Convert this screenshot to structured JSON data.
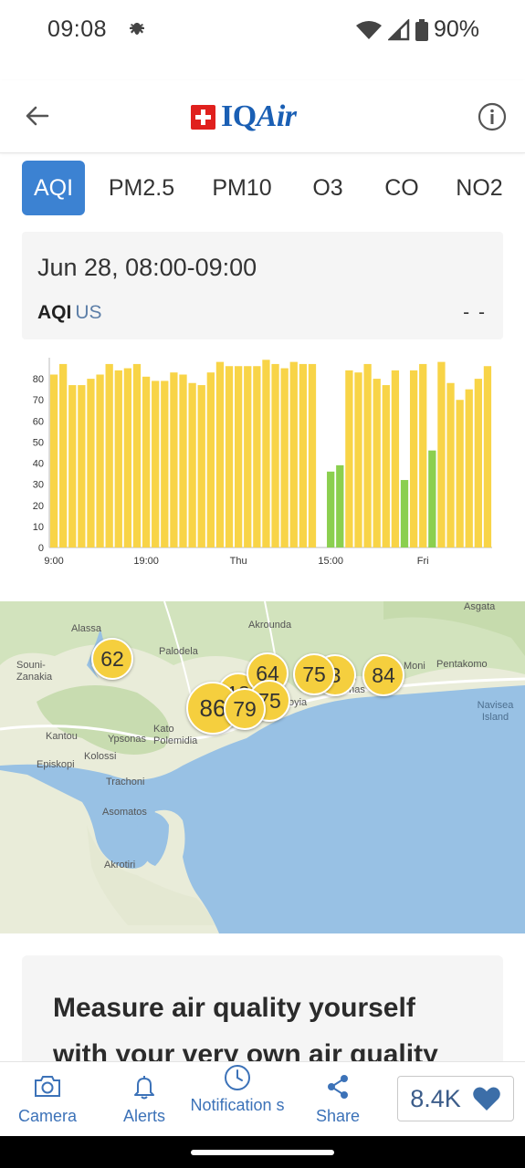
{
  "status_bar": {
    "time": "09:08",
    "battery": "90%"
  },
  "header": {
    "brand_main": "IQ",
    "brand_italic": "Air"
  },
  "tabs": [
    "AQI",
    "PM2.5",
    "PM10",
    "O3",
    "CO",
    "NO2"
  ],
  "summary": {
    "date": "Jun 28, 08:00-09:00",
    "metric": "AQI",
    "unit": "US",
    "value": "- -"
  },
  "chart_data": {
    "type": "bar",
    "y_ticks": [
      "0",
      "10",
      "20",
      "30",
      "40",
      "50",
      "60",
      "70",
      "80"
    ],
    "ylim": [
      0,
      90
    ],
    "x_tick_labels": [
      {
        "label": "9:00",
        "index": 0
      },
      {
        "label": "19:00",
        "index": 10
      },
      {
        "label": "Thu",
        "index": 20
      },
      {
        "label": "15:00",
        "index": 30
      },
      {
        "label": "Fri",
        "index": 40
      }
    ],
    "values": [
      82,
      87,
      77,
      77,
      80,
      82,
      87,
      84,
      85,
      87,
      81,
      79,
      79,
      83,
      82,
      78,
      77,
      83,
      88,
      86,
      86,
      86,
      86,
      89,
      87,
      85,
      88,
      87,
      87,
      null,
      36,
      39,
      84,
      83,
      87,
      80,
      77,
      84,
      32,
      84,
      87,
      46,
      88,
      78,
      70,
      75,
      80,
      86
    ],
    "colors": [
      "#f8d447",
      "#f8d447",
      "#f8d447",
      "#f8d447",
      "#f8d447",
      "#f8d447",
      "#f8d447",
      "#f8d447",
      "#f8d447",
      "#f8d447",
      "#f8d447",
      "#f8d447",
      "#f8d447",
      "#f8d447",
      "#f8d447",
      "#f8d447",
      "#f8d447",
      "#f8d447",
      "#f8d447",
      "#f8d447",
      "#f8d447",
      "#f8d447",
      "#f8d447",
      "#f8d447",
      "#f8d447",
      "#f8d447",
      "#f8d447",
      "#f8d447",
      "#f8d447",
      null,
      "#8bcf4f",
      "#8bcf4f",
      "#f8d447",
      "#f8d447",
      "#f8d447",
      "#f8d447",
      "#f8d447",
      "#f8d447",
      "#8bcf4f",
      "#f8d447",
      "#f8d447",
      "#8bcf4f",
      "#f8d447",
      "#f8d447",
      "#f8d447",
      "#f8d447",
      "#f8d447",
      "#f8d447"
    ]
  },
  "map": {
    "places": [
      "Asgata",
      "Alassa",
      "Akrounda",
      "Palodela",
      "Souni-Zanakia",
      "Pentakomo",
      "Moni",
      "Navisea Island",
      "Kantou",
      "Ypsonas",
      "Kato Polemidia",
      "Episkopi",
      "Kolossi",
      "Trachoni",
      "Asomatos",
      "Akrotiri",
      "oyia",
      "onas",
      "s"
    ],
    "markers": [
      "62",
      "64",
      "75",
      "84",
      "18",
      "75",
      "86",
      "79",
      "3"
    ]
  },
  "promo": {
    "headline": "Measure air quality yourself with your very own air quality"
  },
  "bottom_nav": {
    "camera": "Camera",
    "alerts": "Alerts",
    "notifications": "Notification s",
    "share": "Share",
    "likes": "8.4K"
  },
  "colors": {
    "accent": "#3c82d2",
    "bar_yellow": "#f8d447",
    "bar_green": "#8bcf4f",
    "nav_blue": "#3c72b8"
  }
}
